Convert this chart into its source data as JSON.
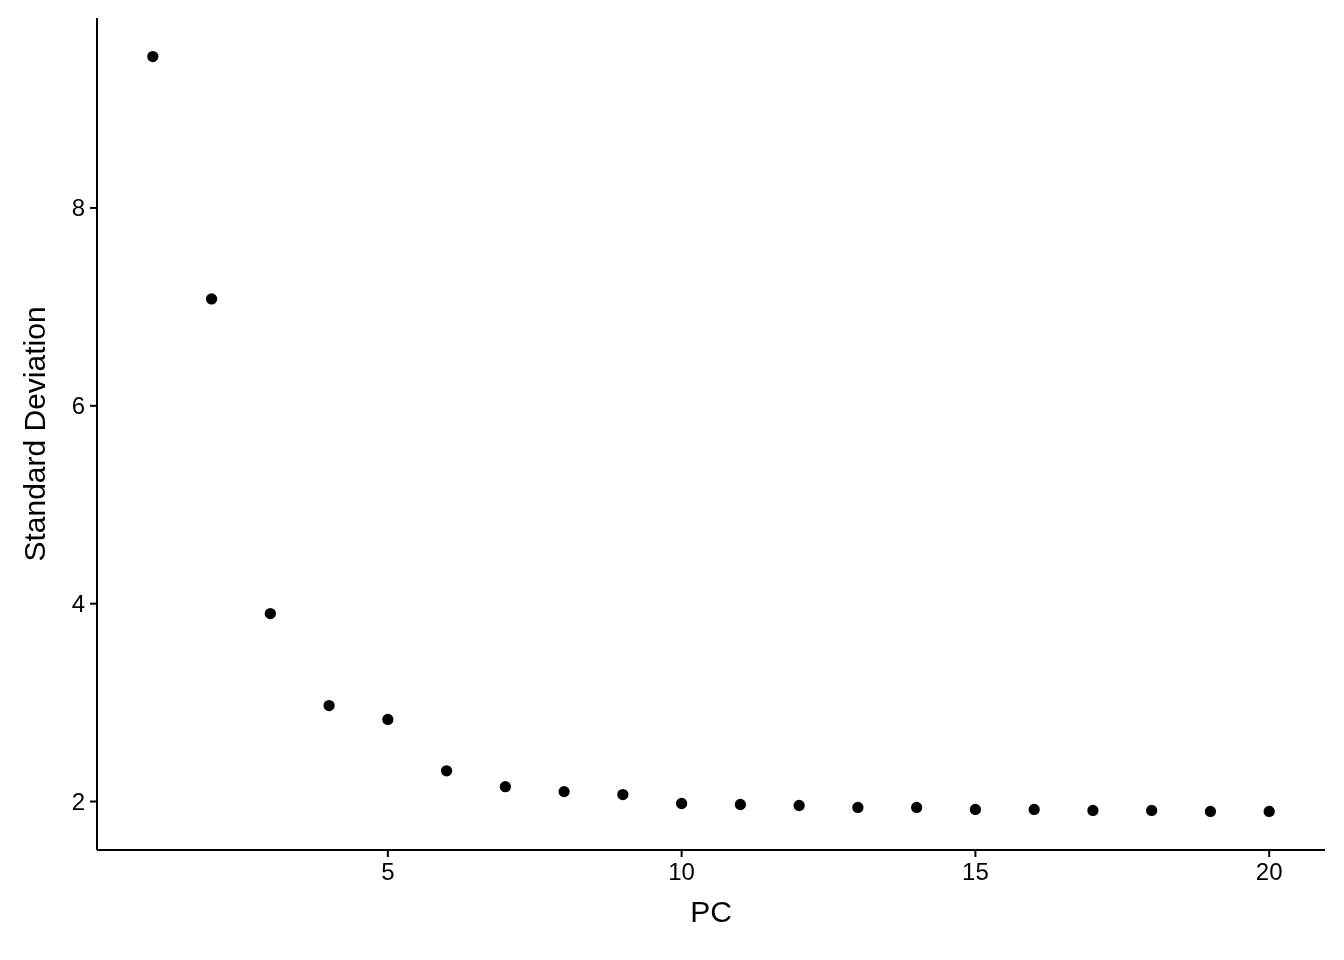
{
  "chart_data": {
    "type": "scatter",
    "xlabel": "PC",
    "ylabel": "Standard Deviation",
    "x": [
      1,
      2,
      3,
      4,
      5,
      6,
      7,
      8,
      9,
      10,
      11,
      12,
      13,
      14,
      15,
      16,
      17,
      18,
      19,
      20
    ],
    "values": [
      9.53,
      7.08,
      3.9,
      2.97,
      2.83,
      2.31,
      2.15,
      2.1,
      2.07,
      1.98,
      1.97,
      1.96,
      1.94,
      1.94,
      1.92,
      1.92,
      1.91,
      1.91,
      1.9,
      1.9
    ],
    "color": "#000000",
    "marker": "circle",
    "xlim": [
      0.05,
      20.95
    ],
    "xticks": [
      5,
      10,
      15,
      20
    ],
    "ylim": [
      1.51,
      9.92
    ],
    "yticks": [
      2,
      4,
      6,
      8
    ],
    "grid": false
  }
}
